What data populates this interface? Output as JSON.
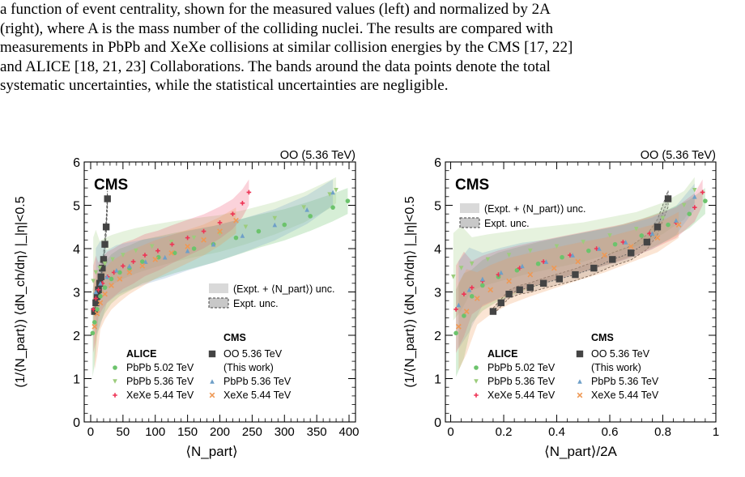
{
  "caption": {
    "lines": [
      "a function of event centrality, shown for the measured values (left) and normalized by 2A",
      "(right), where A is the mass number of the colliding nuclei.  The results are compared with",
      "measurements in PbPb and XeXe collisions at similar collision energies by the CMS [17, 22]",
      "and ALICE [18, 21, 23] Collaborations.  The bands around the data points denote the total",
      "systematic uncertainties, while the statistical uncertainties are negligible."
    ]
  },
  "colors": {
    "oo": "#444444",
    "alice_pbpb502": "#6cc36c",
    "alice_pbpb536": "#9ccc7c",
    "alice_xexe544": "#ee3355",
    "cms_pbpb536": "#6e9fc8",
    "cms_xexe544": "#ee9955",
    "band_grey": "#d9d9d9"
  },
  "chart_data": [
    {
      "type": "scatter",
      "corner_label": "OO (5.36 TeV)",
      "experiment_label": "CMS",
      "xlabel": "⟨N_part⟩",
      "ylabel": "(1/⟨N_part⟩) ⟨dN_ch/dη⟩ |_|η|<0.5",
      "xlim": [
        -10,
        410
      ],
      "ylim": [
        0,
        6
      ],
      "xticks": [
        0,
        50,
        100,
        150,
        200,
        250,
        300,
        350,
        400
      ],
      "xtick_labels": [
        "0",
        "50",
        "100",
        "150",
        "200",
        "250",
        "300",
        "350",
        "400"
      ],
      "yticks": [
        0,
        1,
        2,
        3,
        4,
        5,
        6
      ],
      "ytick_labels": [
        "0",
        "1",
        "2",
        "3",
        "4",
        "5",
        "6"
      ],
      "unc_legend": [
        "(Expt. + ⟨N_part⟩) unc.",
        "Expt. unc."
      ],
      "legend_alice_title": "ALICE",
      "legend_cms_title": "CMS",
      "legend_alice": [
        "PbPb 5.02 TeV",
        "PbPb 5.36 TeV",
        "XeXe 5.44 TeV"
      ],
      "legend_cms": [
        "OO 5.36 TeV",
        "(This work)",
        "PbPb 5.36 TeV",
        "XeXe 5.44 TeV"
      ],
      "series": [
        {
          "name": "OO 5.36 TeV",
          "x": [
            6,
            8,
            10,
            12,
            14,
            16,
            18,
            20,
            22,
            24,
            26
          ],
          "y": [
            2.55,
            2.75,
            2.9,
            3.05,
            3.2,
            3.35,
            3.55,
            3.75,
            4.1,
            4.5,
            5.15
          ]
        },
        {
          "name": "PbPb 5.02 TeV",
          "x": [
            3,
            6,
            10,
            15,
            22,
            32,
            45,
            60,
            80,
            105,
            130,
            160,
            190,
            225,
            260,
            300,
            340,
            375,
            398
          ],
          "y": [
            2.05,
            2.3,
            2.6,
            2.9,
            3.1,
            3.3,
            3.45,
            3.55,
            3.7,
            3.8,
            3.9,
            4.0,
            4.1,
            4.25,
            4.4,
            4.55,
            4.75,
            4.95,
            5.1
          ]
        },
        {
          "name": "PbPb 5.36 TeV",
          "x": [
            4,
            8,
            14,
            22,
            34,
            50,
            70,
            95,
            125,
            160,
            200,
            240,
            285,
            330,
            370,
            380
          ],
          "y": [
            3.25,
            3.45,
            3.55,
            3.65,
            3.75,
            3.85,
            3.95,
            4.05,
            4.15,
            4.25,
            4.35,
            4.5,
            4.7,
            4.95,
            5.25,
            5.35
          ]
        },
        {
          "name": "XeXe 5.44 TeV (ALICE)",
          "x": [
            4,
            8,
            12,
            18,
            26,
            36,
            50,
            66,
            84,
            104,
            126,
            150,
            175,
            200,
            220,
            235,
            245
          ],
          "y": [
            2.6,
            2.85,
            3.05,
            3.2,
            3.35,
            3.45,
            3.6,
            3.7,
            3.85,
            3.95,
            4.1,
            4.25,
            4.4,
            4.6,
            4.8,
            5.05,
            5.3
          ]
        },
        {
          "name": "PbPb 5.36 TeV (CMS)",
          "x": [
            8,
            15,
            25,
            40,
            60,
            85,
            115,
            150,
            190,
            235,
            285,
            335,
            375
          ],
          "y": [
            3.0,
            3.2,
            3.35,
            3.5,
            3.6,
            3.7,
            3.8,
            3.95,
            4.1,
            4.3,
            4.55,
            4.9,
            5.3
          ]
        },
        {
          "name": "XeXe 5.44 TeV (CMS)",
          "x": [
            6,
            10,
            15,
            22,
            32,
            45,
            60,
            80,
            100,
            125,
            150,
            175,
            200,
            225
          ],
          "y": [
            2.2,
            2.5,
            2.75,
            2.95,
            3.15,
            3.3,
            3.45,
            3.6,
            3.75,
            3.9,
            4.05,
            4.2,
            4.4,
            4.65
          ]
        }
      ]
    },
    {
      "type": "scatter",
      "corner_label": "OO (5.36 TeV)",
      "experiment_label": "CMS",
      "xlabel": "⟨N_part⟩/2A",
      "ylabel": "(1/⟨N_part⟩) ⟨dN_ch/dη⟩ |_|η|<0.5",
      "xlim": [
        -0.02,
        1.0
      ],
      "ylim": [
        0,
        6
      ],
      "xticks": [
        0,
        0.2,
        0.4,
        0.6,
        0.8,
        1
      ],
      "xtick_labels": [
        "0",
        "0.2",
        "0.4",
        "0.6",
        "0.8",
        "1"
      ],
      "yticks": [
        0,
        1,
        2,
        3,
        4,
        5,
        6
      ],
      "ytick_labels": [
        "0",
        "1",
        "2",
        "3",
        "4",
        "5",
        "6"
      ],
      "unc_legend": [
        "(Expt. + ⟨N_part⟩) unc.",
        "Expt. unc."
      ],
      "legend_alice_title": "ALICE",
      "legend_cms_title": "CMS",
      "legend_alice": [
        "PbPb 5.02 TeV",
        "PbPb 5.36 TeV",
        "XeXe 5.44 TeV"
      ],
      "legend_cms": [
        "OO 5.36 TeV",
        "(This work)",
        "PbPb 5.36 TeV",
        "XeXe 5.44 TeV"
      ],
      "series": [
        {
          "name": "OO 5.36 TeV",
          "x": [
            0.16,
            0.19,
            0.22,
            0.26,
            0.3,
            0.35,
            0.41,
            0.47,
            0.54,
            0.61,
            0.68,
            0.74,
            0.78,
            0.82
          ],
          "y": [
            2.55,
            2.75,
            2.95,
            3.05,
            3.1,
            3.2,
            3.3,
            3.4,
            3.55,
            3.75,
            3.9,
            4.15,
            4.5,
            5.15
          ]
        },
        {
          "name": "PbPb 5.02 TeV",
          "x": [
            0.02,
            0.05,
            0.08,
            0.12,
            0.18,
            0.25,
            0.33,
            0.42,
            0.52,
            0.62,
            0.72,
            0.82,
            0.9,
            0.96
          ],
          "y": [
            2.05,
            2.45,
            2.9,
            3.15,
            3.35,
            3.5,
            3.65,
            3.8,
            3.95,
            4.1,
            4.3,
            4.55,
            4.8,
            5.1
          ]
        },
        {
          "name": "PbPb 5.36 TeV",
          "x": [
            0.01,
            0.04,
            0.08,
            0.14,
            0.22,
            0.3,
            0.4,
            0.5,
            0.6,
            0.7,
            0.8,
            0.88,
            0.92
          ],
          "y": [
            3.35,
            3.55,
            3.65,
            3.75,
            3.85,
            3.95,
            4.05,
            4.15,
            4.3,
            4.45,
            4.7,
            5.0,
            5.35
          ]
        },
        {
          "name": "XeXe 5.44 TeV (ALICE)",
          "x": [
            0.02,
            0.05,
            0.08,
            0.12,
            0.18,
            0.26,
            0.35,
            0.45,
            0.55,
            0.65,
            0.75,
            0.85,
            0.92,
            0.95
          ],
          "y": [
            2.6,
            2.95,
            3.1,
            3.25,
            3.4,
            3.55,
            3.7,
            3.85,
            4.0,
            4.15,
            4.35,
            4.6,
            4.95,
            5.3
          ]
        },
        {
          "name": "PbPb 5.36 TeV (CMS)",
          "x": [
            0.03,
            0.07,
            0.12,
            0.19,
            0.27,
            0.36,
            0.46,
            0.56,
            0.66,
            0.76,
            0.85,
            0.92
          ],
          "y": [
            2.7,
            3.05,
            3.3,
            3.45,
            3.6,
            3.7,
            3.85,
            4.0,
            4.15,
            4.35,
            4.65,
            5.2
          ]
        },
        {
          "name": "XeXe 5.44 TeV (CMS)",
          "x": [
            0.03,
            0.06,
            0.1,
            0.15,
            0.22,
            0.3,
            0.39,
            0.48,
            0.58,
            0.68,
            0.78,
            0.86
          ],
          "y": [
            2.2,
            2.55,
            2.85,
            3.05,
            3.25,
            3.4,
            3.55,
            3.7,
            3.85,
            4.05,
            4.25,
            4.55
          ]
        }
      ]
    }
  ]
}
